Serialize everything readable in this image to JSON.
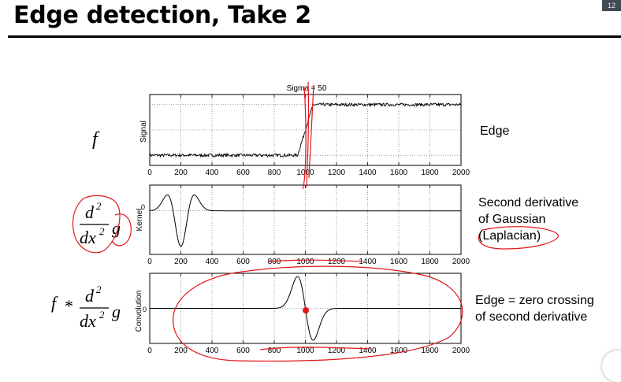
{
  "slide": {
    "title": "Edge detection, Take 2",
    "corner_badge": "12"
  },
  "formulas": {
    "row1": {
      "f": "f"
    },
    "row2": {
      "d2": "d",
      "sup2a": "2",
      "dx": "dx",
      "sup2b": "2",
      "g": "g"
    },
    "row3": {
      "f": "f",
      "star": "*",
      "d2": "d",
      "sup2a": "2",
      "dx": "dx",
      "sup2b": "2",
      "g": "g"
    }
  },
  "plots": {
    "top": {
      "title": "Sigma = 50",
      "ylabel": "Signal"
    },
    "middle": {
      "ylabel": "Kernel",
      "ytick": "0"
    },
    "bottom": {
      "ylabel": "Convolution",
      "ytick": "0"
    }
  },
  "annotations": {
    "edge": "Edge",
    "second_derivative": [
      "Second derivative",
      "of Gaussian",
      "(Laplacian)"
    ],
    "zero_crossing": [
      "Edge = zero crossing",
      "of second derivative"
    ]
  },
  "chart_data": [
    {
      "type": "line",
      "title": "Sigma = 50",
      "ylabel": "Signal",
      "xlim": [
        0,
        2000
      ],
      "xticks": [
        0,
        200,
        400,
        600,
        800,
        1000,
        1200,
        1400,
        1600,
        1800,
        2000
      ],
      "ylim": [
        -0.2,
        1.2
      ],
      "series": [
        {
          "x": [
            0,
            950,
            1000,
            1050,
            2000
          ],
          "y": [
            0,
            0,
            0.5,
            1,
            1
          ]
        }
      ],
      "grid": true
    },
    {
      "type": "line",
      "ylabel": "Kernel",
      "xlim": [
        0,
        2000
      ],
      "xticks": [
        0,
        200,
        400,
        600,
        800,
        1000,
        1200,
        1400,
        1600,
        1800,
        2000
      ],
      "ylim": [
        -1.1,
        0.65
      ],
      "center": 200,
      "sigma": 50,
      "curve": "second derivative of Gaussian, shown inverted",
      "grid": true
    },
    {
      "type": "line",
      "ylabel": "Convolution",
      "xlim": [
        0,
        2000
      ],
      "xticks": [
        0,
        200,
        400,
        600,
        800,
        1000,
        1200,
        1400,
        1600,
        1800,
        2000
      ],
      "ylim": [
        -1.1,
        1.1
      ],
      "zero_crossing_x": 1000,
      "peak_x": 950,
      "trough_x": 1050,
      "grid": true
    }
  ]
}
